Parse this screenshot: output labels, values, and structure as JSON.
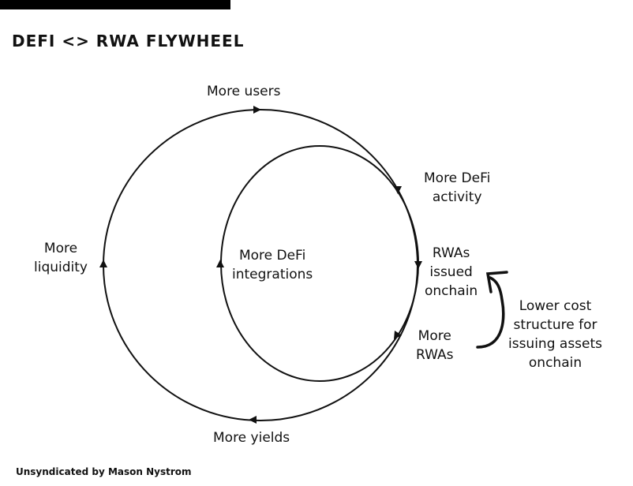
{
  "title": "DEFI <> RWA FLYWHEEL",
  "labels": {
    "more_users": "More users",
    "more_defi_activity": "More DeFi\nactivity",
    "rwas_issued_onchain": "RWAs\nissued\nonchain",
    "more_rwas": "More\nRWAs",
    "more_yields": "More yields",
    "more_liquidity": "More\nliquidity",
    "more_defi_integrations": "More DeFi\nintegrations",
    "lower_cost": "Lower cost\nstructure for\nissuing assets\nonchain"
  },
  "credit": "Unsyndicated by Mason Nystrom"
}
